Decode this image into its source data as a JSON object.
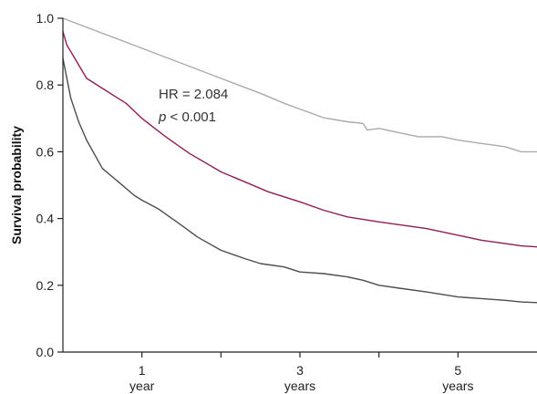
{
  "chart_data": {
    "type": "line",
    "title": "",
    "xlabel": "",
    "ylabel": "Survival probability",
    "xlim": [
      0,
      6
    ],
    "ylim": [
      0.0,
      1.0
    ],
    "y_ticks": [
      {
        "value": 0.0,
        "label": "0.0"
      },
      {
        "value": 0.2,
        "label": "0.2"
      },
      {
        "value": 0.4,
        "label": "0.4"
      },
      {
        "value": 0.6,
        "label": "0.6"
      },
      {
        "value": 0.8,
        "label": "0.8"
      },
      {
        "value": 1.0,
        "label": "1.0"
      }
    ],
    "x_ticks": [
      {
        "value": 1,
        "line1": "1",
        "line2": "year"
      },
      {
        "value": 2,
        "line1": "",
        "line2": ""
      },
      {
        "value": 3,
        "line1": "3",
        "line2": "years"
      },
      {
        "value": 4,
        "line1": "",
        "line2": ""
      },
      {
        "value": 5,
        "line1": "5",
        "line2": "years"
      }
    ],
    "grid": false,
    "annotation": {
      "line1": "HR = 2.084",
      "line2_italic": "p",
      "line2_rest": " < 0.001"
    },
    "series": [
      {
        "color": "#aaaaaa",
        "x": [
          0,
          0.5,
          1,
          1.5,
          2,
          2.5,
          2.8,
          3,
          3.3,
          3.6,
          3.8,
          3.85,
          4.0,
          4.3,
          4.5,
          4.8,
          5.0,
          5.3,
          5.6,
          5.8,
          6.0
        ],
        "y": [
          1.0,
          0.955,
          0.91,
          0.865,
          0.82,
          0.775,
          0.745,
          0.728,
          0.702,
          0.69,
          0.685,
          0.665,
          0.67,
          0.655,
          0.645,
          0.645,
          0.635,
          0.625,
          0.615,
          0.6,
          0.6
        ]
      },
      {
        "color": "#8e1f55",
        "x": [
          0,
          0.05,
          0.15,
          0.3,
          0.5,
          0.8,
          1.0,
          1.3,
          1.6,
          2.0,
          2.3,
          2.6,
          3.0,
          3.3,
          3.6,
          4.0,
          4.3,
          4.6,
          5.0,
          5.3,
          5.6,
          5.8,
          6.0
        ],
        "y": [
          0.96,
          0.92,
          0.88,
          0.82,
          0.79,
          0.745,
          0.7,
          0.645,
          0.595,
          0.54,
          0.51,
          0.48,
          0.45,
          0.425,
          0.405,
          0.39,
          0.38,
          0.37,
          0.35,
          0.335,
          0.325,
          0.318,
          0.315
        ]
      },
      {
        "color": "#4d4d4d",
        "x": [
          0,
          0.05,
          0.1,
          0.2,
          0.3,
          0.5,
          0.7,
          0.9,
          1.0,
          1.2,
          1.5,
          1.7,
          2.0,
          2.3,
          2.5,
          2.8,
          3.0,
          3.3,
          3.6,
          3.8,
          4.0,
          4.3,
          4.6,
          5.0,
          5.3,
          5.6,
          5.8,
          6.0
        ],
        "y": [
          0.88,
          0.82,
          0.76,
          0.69,
          0.635,
          0.55,
          0.51,
          0.47,
          0.455,
          0.43,
          0.38,
          0.345,
          0.305,
          0.28,
          0.265,
          0.255,
          0.24,
          0.235,
          0.225,
          0.215,
          0.2,
          0.19,
          0.18,
          0.165,
          0.16,
          0.155,
          0.15,
          0.148
        ]
      }
    ]
  }
}
